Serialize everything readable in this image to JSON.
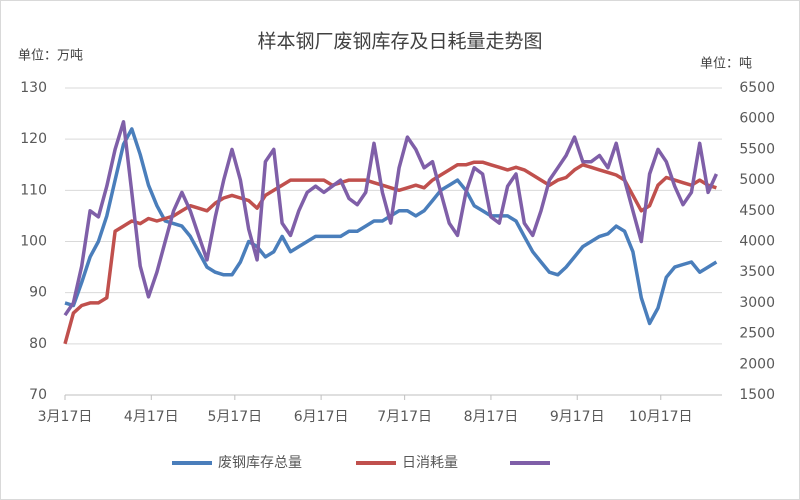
{
  "chart_data": {
    "type": "line",
    "title": "样本钢厂废钢库存及日耗量走势图",
    "y_unit_label": "单位：万吨",
    "y2_unit_label": "单位：吨",
    "x": [
      0,
      3,
      6,
      9,
      12,
      15,
      18,
      21,
      24,
      27,
      30,
      33,
      36,
      39,
      42,
      45,
      48,
      51,
      54,
      57,
      60,
      63,
      66,
      69,
      72,
      75,
      78,
      81,
      84,
      87,
      90,
      93,
      96,
      99,
      102,
      105,
      108,
      111,
      114,
      117,
      120,
      123,
      126,
      129,
      132,
      135,
      138,
      141,
      144,
      147,
      150,
      153,
      156,
      159,
      162,
      165,
      168,
      171,
      174,
      177,
      180,
      183,
      186,
      189,
      192,
      195,
      198,
      201,
      204,
      207,
      210,
      213,
      216,
      219,
      222,
      225,
      228,
      231,
      234
    ],
    "xlim": [
      0,
      236
    ],
    "xticks": [
      {
        "value": 0,
        "label": "3月17日"
      },
      {
        "value": 31,
        "label": "4月17日"
      },
      {
        "value": 61,
        "label": "5月17日"
      },
      {
        "value": 92,
        "label": "6月17日"
      },
      {
        "value": 122,
        "label": "7月17日"
      },
      {
        "value": 153,
        "label": "8月17日"
      },
      {
        "value": 184,
        "label": "9月17日"
      },
      {
        "value": 214,
        "label": "10月17日"
      }
    ],
    "ylim": [
      70,
      130
    ],
    "yticks": [
      70,
      80,
      90,
      100,
      110,
      120,
      130
    ],
    "y2lim": [
      1500,
      6500
    ],
    "y2ticks": [
      1500,
      2000,
      2500,
      3000,
      3500,
      4000,
      4500,
      5000,
      5500,
      6000,
      6500
    ],
    "grid": true,
    "series": [
      {
        "name": "废钢库存总量",
        "color": "#4a7ebb",
        "values": [
          88,
          87.5,
          92,
          97,
          100,
          105,
          112,
          119,
          122,
          117,
          111,
          107,
          104,
          103.5,
          103,
          101,
          98,
          95,
          94,
          93.5,
          93.5,
          96,
          100,
          99,
          97,
          98,
          101,
          98,
          99,
          100,
          101,
          101,
          101,
          101,
          102,
          102,
          103,
          104,
          104,
          105,
          106,
          106,
          105,
          106,
          108,
          110,
          111,
          112,
          110,
          107,
          106,
          105,
          105,
          105,
          104,
          101,
          98,
          96,
          94,
          93.5,
          95,
          97,
          99,
          100,
          101,
          101.5,
          103,
          102,
          98,
          89,
          84,
          87,
          93,
          95,
          95.5,
          96,
          94,
          95,
          96
        ]
      },
      {
        "name": "日消耗量",
        "color": "#c0504d",
        "values": [
          80,
          86,
          87.5,
          88,
          88,
          89,
          102,
          103,
          104,
          103.5,
          104.5,
          104,
          104.5,
          105,
          106,
          107,
          106.5,
          106,
          107.5,
          108.5,
          109,
          108.5,
          108,
          106.5,
          109,
          110,
          111,
          112,
          112,
          112,
          112,
          112,
          111,
          111.5,
          112,
          112,
          112,
          111.5,
          111,
          110.5,
          110,
          110.5,
          111,
          110.5,
          112,
          113,
          114,
          115,
          115,
          115.5,
          115.5,
          115,
          114.5,
          114,
          114.5,
          114,
          113,
          112,
          111,
          112,
          112.5,
          114,
          115,
          114.5,
          114,
          113.5,
          113,
          112,
          109,
          106,
          107,
          111,
          112.5,
          112,
          111.5,
          111,
          112,
          111,
          110.5
        ]
      },
      {
        "color": "#7f5fa8",
        "axis": "y2",
        "values": [
          2800,
          3000,
          3600,
          4500,
          4400,
          4900,
          5500,
          5950,
          4800,
          3600,
          3100,
          3500,
          4000,
          4500,
          4800,
          4500,
          4100,
          3700,
          4400,
          5000,
          5500,
          5000,
          4200,
          3700,
          5300,
          5500,
          4300,
          4100,
          4500,
          4800,
          4900,
          4800,
          4900,
          5000,
          4700,
          4600,
          4800,
          5600,
          4800,
          4300,
          5200,
          5700,
          5500,
          5200,
          5300,
          4800,
          4300,
          4100,
          4800,
          5200,
          5100,
          4400,
          4300,
          4900,
          5100,
          4300,
          4100,
          4500,
          5000,
          5200,
          5400,
          5700,
          5300,
          5300,
          5400,
          5200,
          5600,
          5000,
          4500,
          4000,
          5100,
          5500,
          5300,
          4900,
          4600,
          4800,
          5600,
          4800,
          5100
        ]
      }
    ]
  }
}
